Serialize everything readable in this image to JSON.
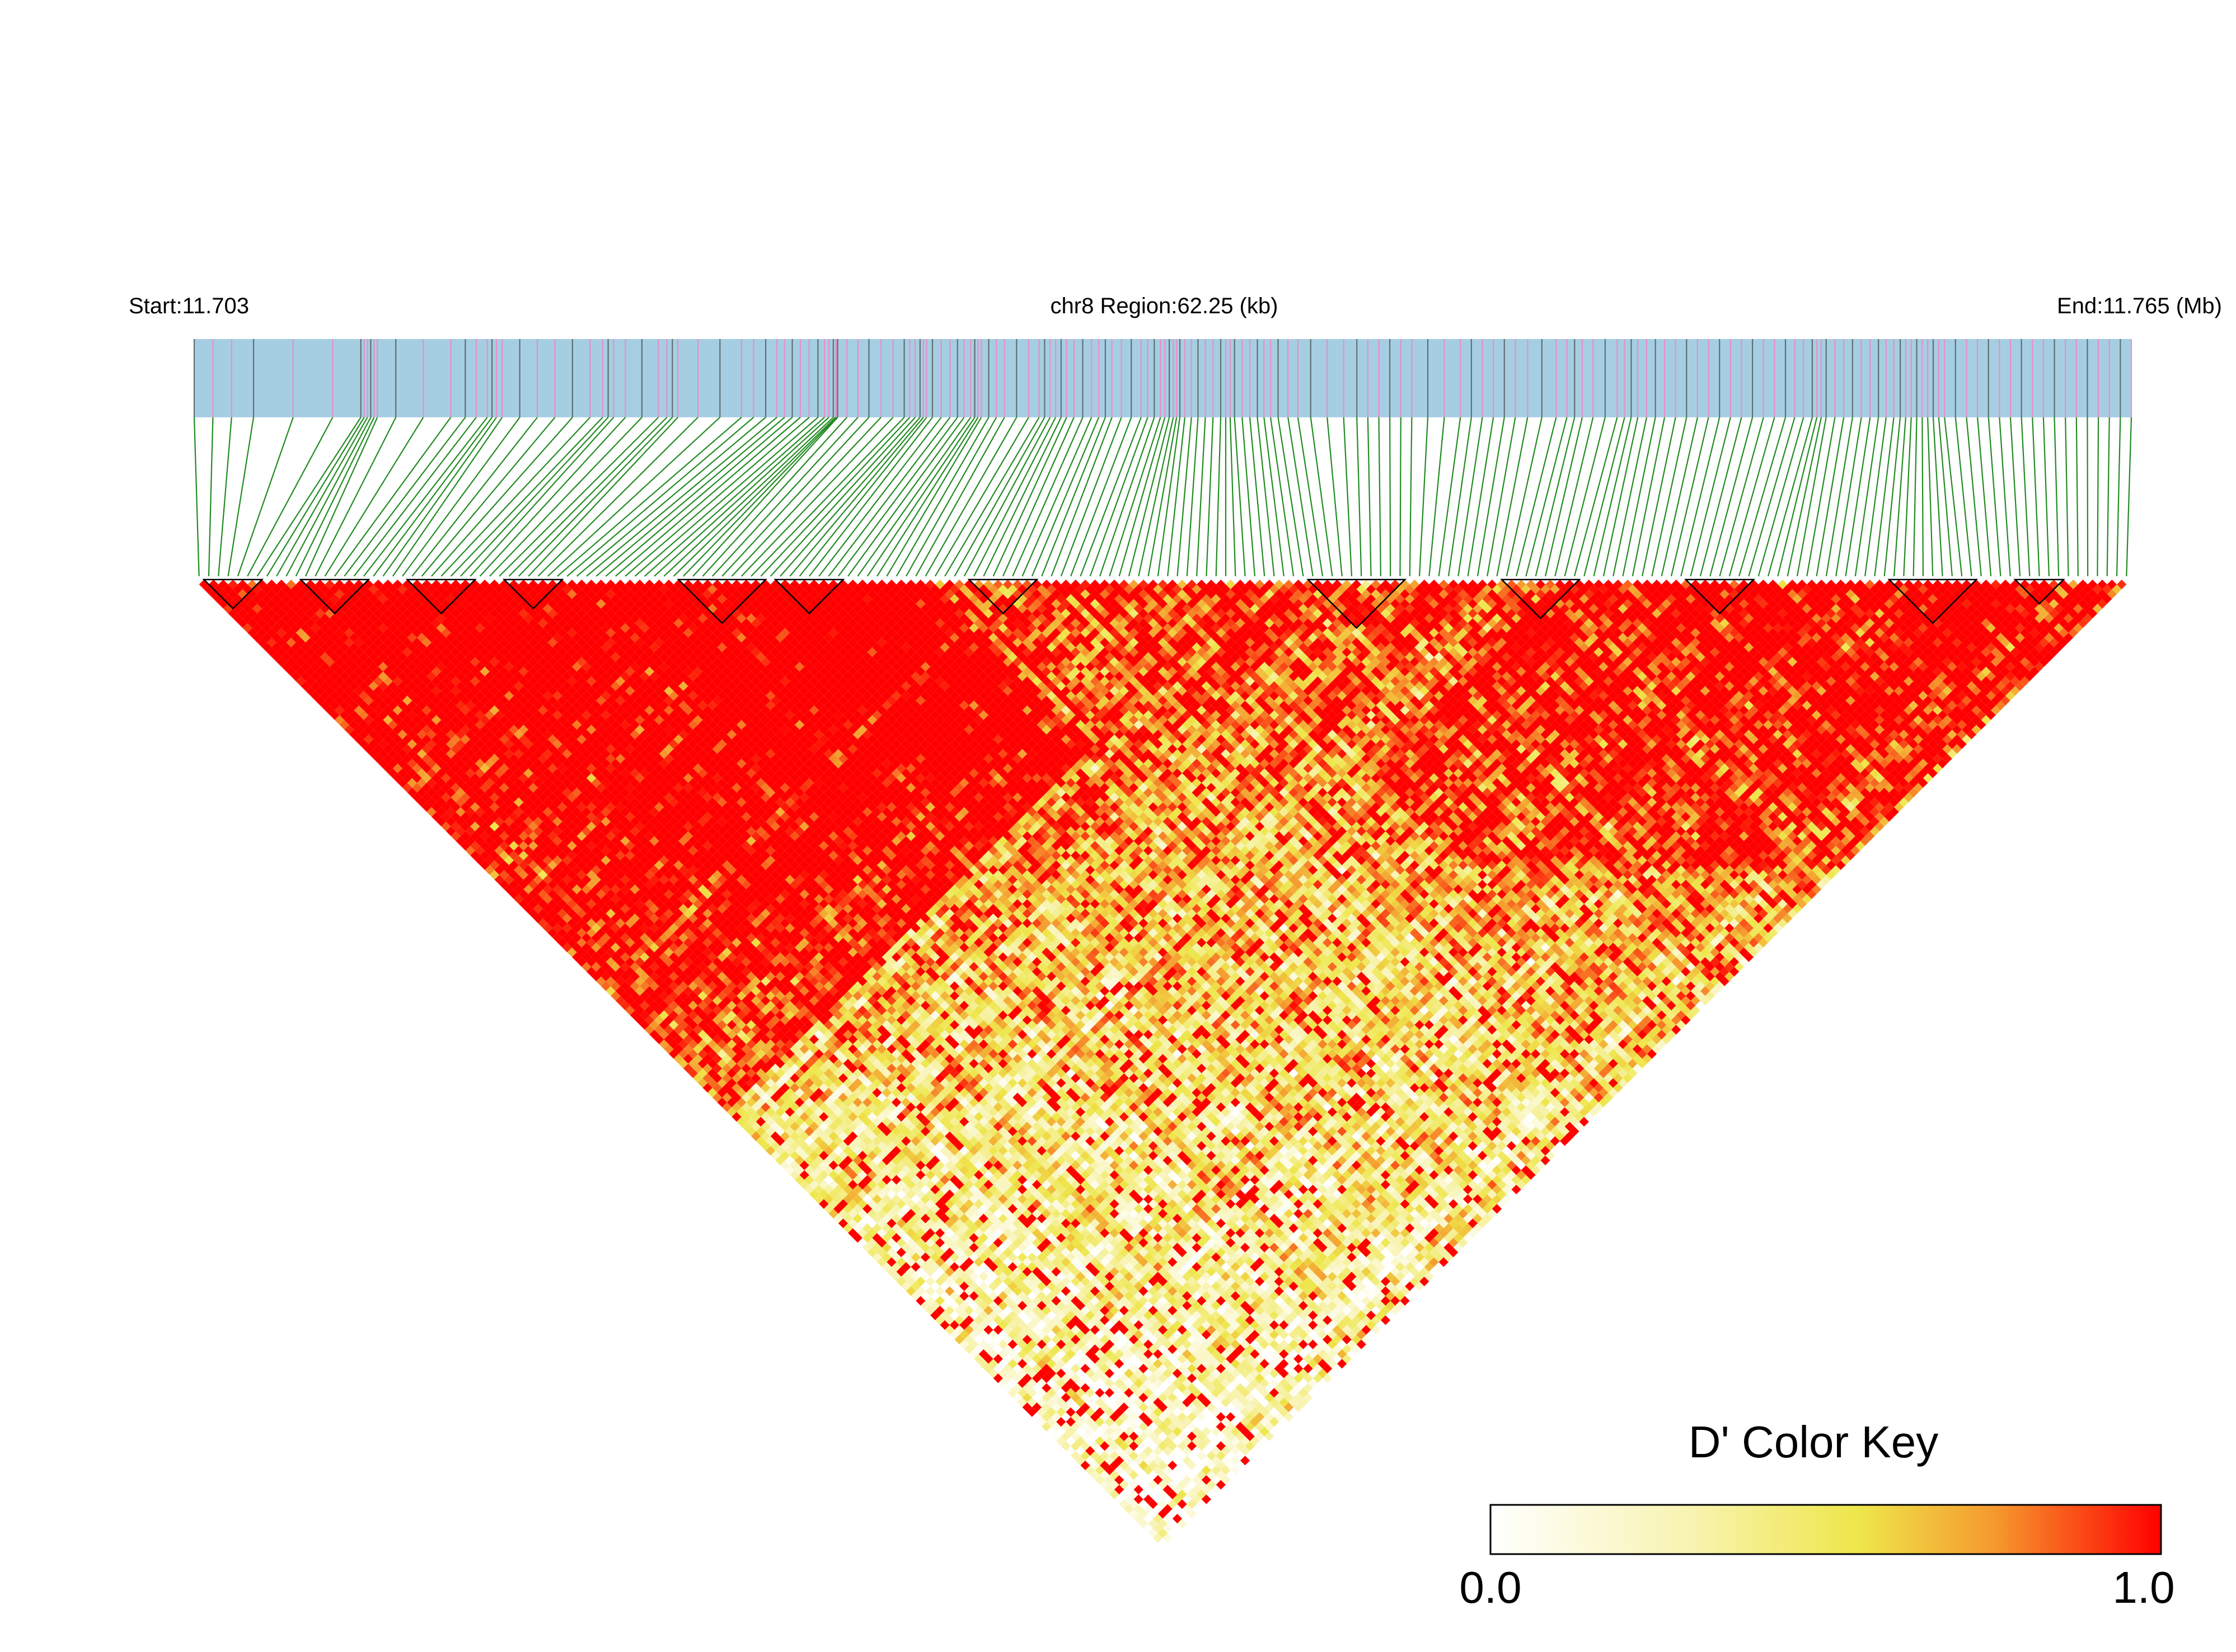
{
  "chart_data": {
    "type": "heatmap",
    "title": "",
    "header": {
      "start_label": "Start:11.703",
      "region_label": "chr8 Region:62.25 (kb)",
      "end_label": "End:11.765 (Mb)"
    },
    "region": {
      "chromosome": "chr8",
      "start_mb": 11.703,
      "end_mb": 11.765,
      "length_kb": 62.25
    },
    "legend": {
      "title": "D' Color Key",
      "min_label": "0.0",
      "max_label": "1.0",
      "range": [
        0.0,
        1.0
      ],
      "placement": "bottom-right"
    },
    "snp_count": 200,
    "snp_positions_mb": [
      11.703,
      11.7047,
      11.7083,
      11.7086,
      11.7089,
      11.7114,
      11.7124,
      11.7128,
      11.7144,
      11.716,
      11.7165,
      11.718,
      11.7185,
      11.7205,
      11.7216,
      11.7223,
      11.7231,
      11.7235,
      11.7236,
      11.7246,
      11.7257,
      11.7262,
      11.7265,
      11.7273,
      11.7279,
      11.7282,
      11.7289,
      11.73,
      11.7305,
      11.731,
      11.7318,
      11.7324,
      11.7333,
      11.7339,
      11.7343,
      11.7346,
      11.7352,
      11.7359,
      11.7363,
      11.737,
      11.7376,
      11.7385,
      11.74,
      11.741,
      11.742,
      11.7435,
      11.7445,
      11.7455,
      11.7468,
      11.7475,
      11.7486,
      11.7492,
      11.75,
      11.751,
      11.752,
      11.753,
      11.754,
      11.7548,
      11.7552,
      11.756,
      11.7568,
      11.7575,
      11.758,
      11.7585,
      11.759,
      11.76,
      11.761,
      11.762,
      11.763,
      11.764,
      11.765
    ],
    "dprime_scale": [
      {
        "value": 0.0,
        "color": "#ffffff"
      },
      {
        "value": 0.3,
        "color": "#f8f3b0"
      },
      {
        "value": 0.55,
        "color": "#eee64a"
      },
      {
        "value": 0.75,
        "color": "#f59a2e"
      },
      {
        "value": 1.0,
        "color": "#ff0000"
      }
    ],
    "ld_blocks_snp_index": [
      [
        1,
        6
      ],
      [
        11,
        17
      ],
      [
        22,
        28
      ],
      [
        32,
        37
      ],
      [
        50,
        58
      ],
      [
        60,
        66
      ],
      [
        80,
        86
      ],
      [
        115,
        124
      ],
      [
        135,
        142
      ],
      [
        154,
        160
      ],
      [
        175,
        183
      ],
      [
        188,
        192
      ]
    ],
    "colors": {
      "snp_track": "#a6cee3",
      "snp_tick_pink": "#e88fc9",
      "snp_tick_gray": "#607070",
      "connector": "#228b22",
      "block_outline": "#000000"
    }
  }
}
